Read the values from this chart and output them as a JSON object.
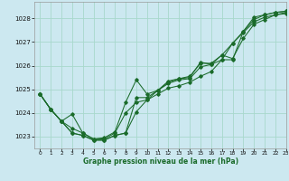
{
  "title": "Graphe pression niveau de la mer (hPa)",
  "background_color": "#cce8f0",
  "grid_color": "#a8d8cc",
  "line_color": "#1a6b2a",
  "xlim": [
    -0.5,
    23
  ],
  "ylim": [
    1022.5,
    1028.7
  ],
  "yticks": [
    1023,
    1024,
    1025,
    1026,
    1027,
    1028
  ],
  "xticks": [
    0,
    1,
    2,
    3,
    4,
    5,
    6,
    7,
    8,
    9,
    10,
    11,
    12,
    13,
    14,
    15,
    16,
    17,
    18,
    19,
    20,
    21,
    22,
    23
  ],
  "series": [
    [
      1024.8,
      1024.15,
      1023.65,
      1023.15,
      1023.05,
      1022.85,
      1022.85,
      1023.05,
      1023.15,
      1024.05,
      1024.55,
      1024.95,
      1025.35,
      1025.45,
      1025.5,
      1026.15,
      1026.05,
      1026.45,
      1026.95,
      1027.45,
      1028.05,
      1028.15,
      1028.25,
      1028.3
    ],
    [
      1024.8,
      1024.15,
      1023.65,
      1023.15,
      1023.05,
      1022.85,
      1022.85,
      1023.05,
      1023.15,
      1024.65,
      1024.65,
      1024.95,
      1025.25,
      1025.4,
      1025.45,
      1025.95,
      1026.05,
      1026.25,
      1026.95,
      1027.4,
      1027.85,
      1028.05,
      1028.15,
      1028.2
    ],
    [
      1024.8,
      1024.15,
      1023.65,
      1023.95,
      1023.15,
      1022.9,
      1022.9,
      1023.15,
      1024.0,
      1024.45,
      1024.55,
      1024.8,
      1025.05,
      1025.15,
      1025.3,
      1025.55,
      1025.75,
      1026.25,
      1026.25,
      1027.45,
      1027.95,
      1028.15,
      1028.25,
      1028.3
    ],
    [
      1024.8,
      1024.15,
      1023.65,
      1023.35,
      1023.15,
      1022.9,
      1022.95,
      1023.2,
      1024.45,
      1025.4,
      1024.8,
      1024.95,
      1025.3,
      1025.45,
      1025.55,
      1026.1,
      1026.1,
      1026.45,
      1026.3,
      1027.15,
      1027.75,
      1027.95,
      1028.15,
      1028.25
    ]
  ]
}
